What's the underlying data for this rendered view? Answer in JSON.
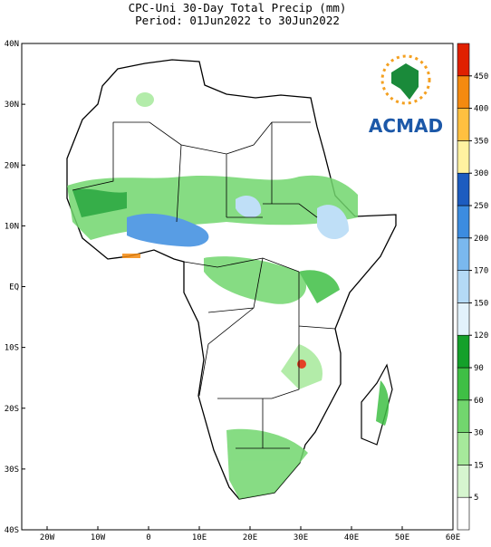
{
  "title": "CPC-Uni 30-Day Total Precip (mm)",
  "subtitle": "Period: 01Jun2022 to 30Jun2022",
  "lat_labels": [
    "40N",
    "30N",
    "20N",
    "10N",
    "EQ",
    "10S",
    "20S",
    "30S",
    "40S"
  ],
  "lon_labels": [
    "20W",
    "10W",
    "0",
    "10E",
    "20E",
    "30E",
    "40E",
    "50E",
    "60E"
  ],
  "colorbar": {
    "levels": [
      5,
      15,
      30,
      60,
      90,
      120,
      150,
      170,
      200,
      250,
      300,
      350,
      400,
      450
    ],
    "colors": [
      "#ffffff",
      "#d6f5cf",
      "#a6e99b",
      "#72d66e",
      "#3fbf45",
      "#14a02a",
      "#e2f2fb",
      "#b4daf6",
      "#7ab8ee",
      "#3c8ce0",
      "#1c5cc0",
      "#fff2a0",
      "#ffc040",
      "#f48a10",
      "#e02000"
    ]
  },
  "logo": "ACMAD"
}
